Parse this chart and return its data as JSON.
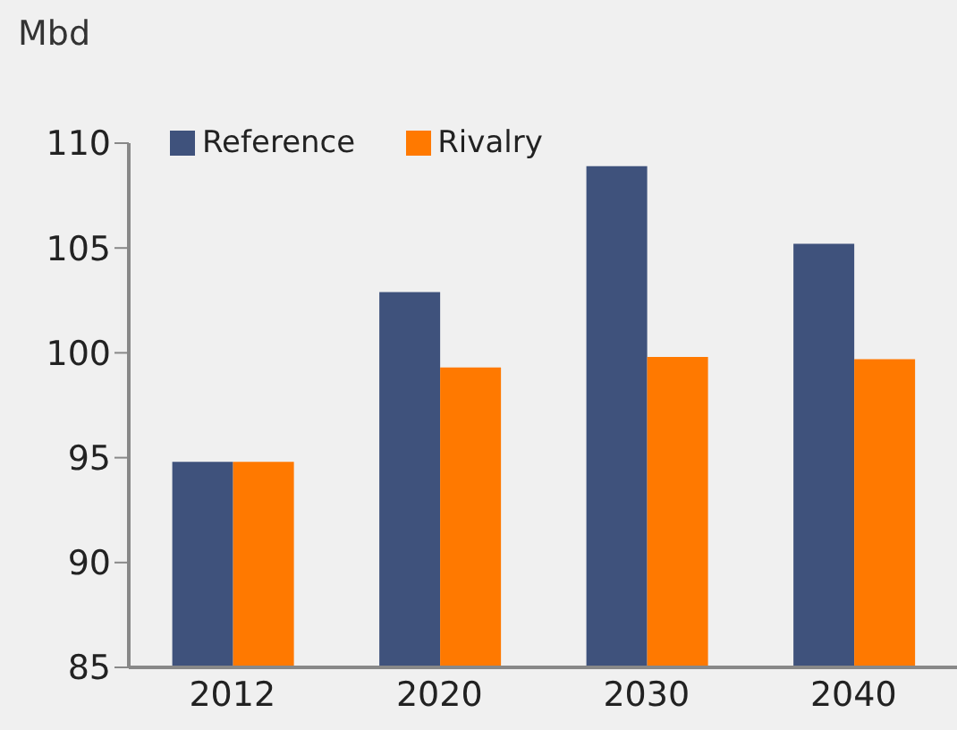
{
  "chart_data": {
    "type": "bar",
    "ylabel": "Mbd",
    "categories": [
      "2012",
      "2020",
      "2030",
      "2040"
    ],
    "series": [
      {
        "name": "Reference",
        "color": "#3f527c",
        "values": [
          94.8,
          102.9,
          108.9,
          105.2
        ]
      },
      {
        "name": "Rivalry",
        "color": "#ff7900",
        "values": [
          94.8,
          99.3,
          99.8,
          99.7
        ]
      }
    ],
    "ylim": [
      85,
      110
    ],
    "yticks": [
      85,
      90,
      95,
      100,
      105,
      110
    ],
    "grid": false,
    "legend": "top left"
  }
}
